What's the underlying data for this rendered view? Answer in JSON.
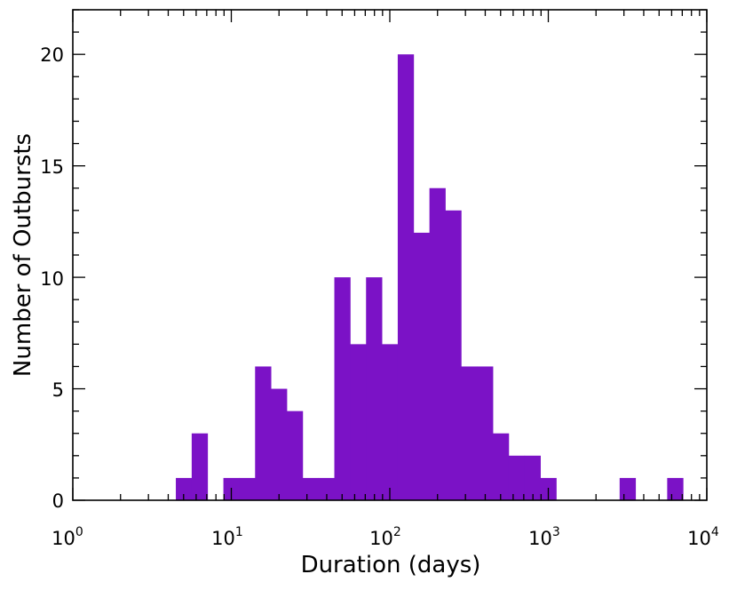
{
  "chart_data": {
    "type": "bar",
    "xlabel": "Duration (days)",
    "ylabel": "Number of Outbursts",
    "x_scale": "log",
    "xlim": [
      1,
      10000
    ],
    "ylim": [
      0,
      22
    ],
    "x_ticks": [
      {
        "base": "10",
        "exp": "0"
      },
      {
        "base": "10",
        "exp": "1"
      },
      {
        "base": "10",
        "exp": "2"
      },
      {
        "base": "10",
        "exp": "3"
      },
      {
        "base": "10",
        "exp": "4"
      }
    ],
    "y_ticks": [
      "0",
      "5",
      "10",
      "15",
      "20"
    ],
    "y_tick_values": [
      0,
      5,
      10,
      15,
      20
    ],
    "grid": false,
    "bar_color": "#7b12c6",
    "bins_log10_start": 0.65,
    "bin_width_log10": 0.1,
    "values": [
      1,
      3,
      0,
      1,
      1,
      6,
      5,
      4,
      1,
      1,
      10,
      7,
      10,
      7,
      20,
      12,
      14,
      13,
      6,
      6,
      3,
      2,
      2,
      1,
      0,
      0,
      0,
      0,
      1,
      0,
      0,
      1
    ]
  }
}
